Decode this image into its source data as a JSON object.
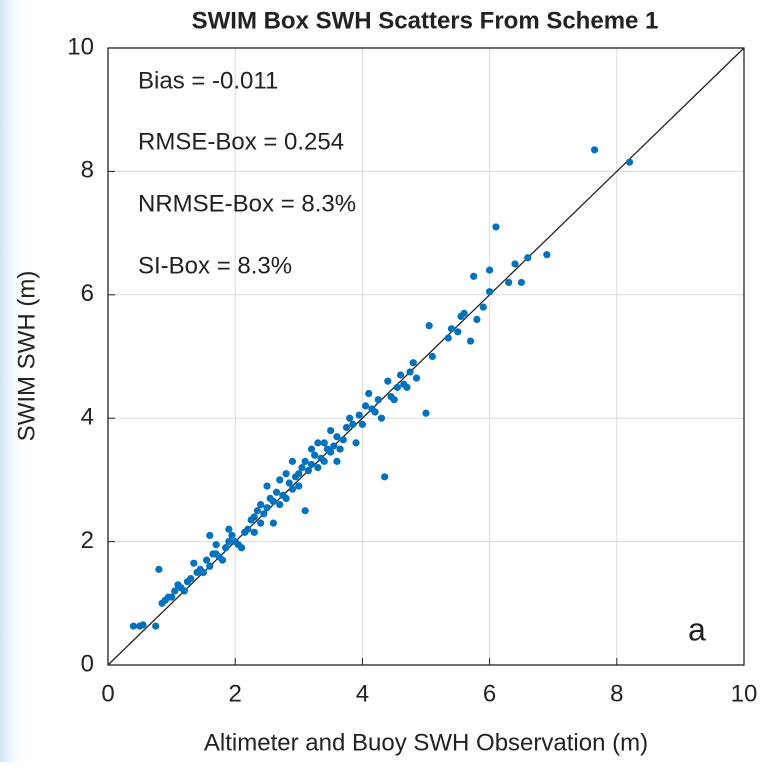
{
  "chart_data": {
    "type": "scatter",
    "title": "SWIM Box SWH Scatters From Scheme 1",
    "x_label": "Altimeter and Buoy SWH Observation (m)",
    "y_label": "SWIM SWH (m)",
    "annotations": [
      "Bias = -0.011",
      "RMSE-Box = 0.254",
      "NRMSE-Box = 8.3%",
      "SI-Box = 8.3%"
    ],
    "panel_label": "a",
    "color": "#0072bd",
    "grid": true,
    "xlim": [
      0,
      10
    ],
    "ylim": [
      0,
      10
    ],
    "xticks": [
      0,
      2,
      4,
      6,
      8,
      10
    ],
    "yticks": [
      0,
      2,
      4,
      6,
      8,
      10
    ],
    "x": [
      0.4,
      0.5,
      0.55,
      0.75,
      0.8,
      0.85,
      0.9,
      0.95,
      1.0,
      1.05,
      1.1,
      1.15,
      1.2,
      1.25,
      1.3,
      1.35,
      1.4,
      1.45,
      1.5,
      1.55,
      1.6,
      1.6,
      1.65,
      1.7,
      1.7,
      1.75,
      1.8,
      1.85,
      1.9,
      1.9,
      1.95,
      2.0,
      2.05,
      2.1,
      2.15,
      2.2,
      2.25,
      2.3,
      2.3,
      2.35,
      2.4,
      2.4,
      2.45,
      2.5,
      2.5,
      2.55,
      2.6,
      2.6,
      2.65,
      2.7,
      2.7,
      2.75,
      2.8,
      2.8,
      2.85,
      2.9,
      2.9,
      2.95,
      3.0,
      3.0,
      3.05,
      3.1,
      3.1,
      3.15,
      3.2,
      3.2,
      3.25,
      3.3,
      3.3,
      3.35,
      3.4,
      3.4,
      3.45,
      3.5,
      3.5,
      3.55,
      3.6,
      3.6,
      3.65,
      3.7,
      3.75,
      3.8,
      3.85,
      3.9,
      3.95,
      4.0,
      4.05,
      4.1,
      4.15,
      4.2,
      4.25,
      4.3,
      4.35,
      4.4,
      4.45,
      4.5,
      4.55,
      4.6,
      4.65,
      4.7,
      4.75,
      4.8,
      4.85,
      5.0,
      5.05,
      5.1,
      5.35,
      5.4,
      5.5,
      5.55,
      5.6,
      5.7,
      5.75,
      5.8,
      5.9,
      6.0,
      6.0,
      6.1,
      6.3,
      6.4,
      6.5,
      6.6,
      6.9,
      7.65,
      8.2
    ],
    "values": [
      0.63,
      0.63,
      0.65,
      0.63,
      1.55,
      1.0,
      1.05,
      1.1,
      1.1,
      1.2,
      1.3,
      1.25,
      1.2,
      1.35,
      1.4,
      1.65,
      1.5,
      1.55,
      1.5,
      1.7,
      2.1,
      1.6,
      1.8,
      1.8,
      1.95,
      1.75,
      1.7,
      1.9,
      2.2,
      2.0,
      2.1,
      2.0,
      1.95,
      1.9,
      2.15,
      2.2,
      2.35,
      2.4,
      2.15,
      2.5,
      2.6,
      2.3,
      2.45,
      2.9,
      2.55,
      2.7,
      2.3,
      2.65,
      2.8,
      3.0,
      2.6,
      2.75,
      2.7,
      3.1,
      2.95,
      3.3,
      2.85,
      3.05,
      3.1,
      2.9,
      3.2,
      2.5,
      3.3,
      3.15,
      3.5,
      3.25,
      3.4,
      3.2,
      3.6,
      3.35,
      3.6,
      3.3,
      3.5,
      3.8,
      3.45,
      3.55,
      3.3,
      3.7,
      3.5,
      3.65,
      3.85,
      4.0,
      3.9,
      3.6,
      4.05,
      3.9,
      4.2,
      4.4,
      4.15,
      4.1,
      4.3,
      4.0,
      3.05,
      4.6,
      4.35,
      4.3,
      4.5,
      4.7,
      4.55,
      4.5,
      4.75,
      4.9,
      4.65,
      4.08,
      5.5,
      5.0,
      5.3,
      5.45,
      5.4,
      5.65,
      5.7,
      5.25,
      6.3,
      5.6,
      5.8,
      6.05,
      6.4,
      7.1,
      6.2,
      6.5,
      6.2,
      6.6,
      6.65,
      8.35,
      8.15
    ]
  }
}
